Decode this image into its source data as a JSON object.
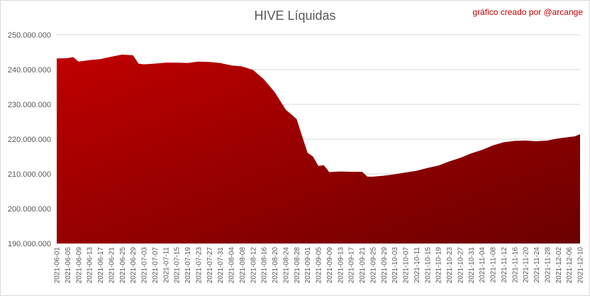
{
  "chart_data": {
    "type": "area",
    "title": "HIVE Líquidas",
    "credit": "gráfico creado por @arcange",
    "xlabel": "",
    "ylabel": "",
    "ylim": [
      190000000,
      250000000
    ],
    "yticks": [
      {
        "value": 190000000,
        "label": "190.000.000"
      },
      {
        "value": 200000000,
        "label": "200.000.000"
      },
      {
        "value": 210000000,
        "label": "210.000.000"
      },
      {
        "value": 220000000,
        "label": "220.000.000"
      },
      {
        "value": 230000000,
        "label": "230.000.000"
      },
      {
        "value": 240000000,
        "label": "240.000.000"
      },
      {
        "value": 250000000,
        "label": "250.000.000"
      }
    ],
    "xticks": [
      "2021-06-01",
      "2021-06-05",
      "2021-06-09",
      "2021-06-13",
      "2021-06-17",
      "2021-06-21",
      "2021-06-25",
      "2021-06-29",
      "2021-07-03",
      "2021-07-07",
      "2021-07-11",
      "2021-07-15",
      "2021-07-19",
      "2021-07-23",
      "2021-07-27",
      "2021-07-31",
      "2021-08-04",
      "2021-08-08",
      "2021-08-12",
      "2021-08-16",
      "2021-08-20",
      "2021-08-24",
      "2021-08-28",
      "2021-09-01",
      "2021-09-05",
      "2021-09-09",
      "2021-09-13",
      "2021-09-17",
      "2021-09-21",
      "2021-09-25",
      "2021-09-29",
      "2021-10-03",
      "2021-10-07",
      "2021-10-11",
      "2021-10-15",
      "2021-10-19",
      "2021-10-23",
      "2021-10-27",
      "2021-10-31",
      "2021-11-04",
      "2021-11-08",
      "2021-11-12",
      "2021-11-16",
      "2021-11-20",
      "2021-11-24",
      "2021-11-28",
      "2021-12-02",
      "2021-12-06",
      "2021-12-10"
    ],
    "grid": true,
    "legend": "none",
    "colors": {
      "fill_top": "#c00000",
      "fill_bottom": "#6b0000",
      "grid": "#d9d9d9",
      "credit": "#c00000"
    },
    "series": [
      {
        "x": [
          "2021-06-01",
          "2021-06-05",
          "2021-06-07",
          "2021-06-09",
          "2021-06-13",
          "2021-06-17",
          "2021-06-21",
          "2021-06-25",
          "2021-06-29",
          "2021-07-01",
          "2021-07-03",
          "2021-07-07",
          "2021-07-11",
          "2021-07-15",
          "2021-07-19",
          "2021-07-23",
          "2021-07-27",
          "2021-07-31",
          "2021-08-04",
          "2021-08-08",
          "2021-08-12",
          "2021-08-16",
          "2021-08-20",
          "2021-08-24",
          "2021-08-28",
          "2021-09-01",
          "2021-09-03",
          "2021-09-05",
          "2021-09-07",
          "2021-09-09",
          "2021-09-11",
          "2021-09-13",
          "2021-09-17",
          "2021-09-21",
          "2021-09-23",
          "2021-09-25",
          "2021-09-29",
          "2021-10-03",
          "2021-10-07",
          "2021-10-11",
          "2021-10-15",
          "2021-10-19",
          "2021-10-23",
          "2021-10-27",
          "2021-10-31",
          "2021-11-04",
          "2021-11-08",
          "2021-11-12",
          "2021-11-16",
          "2021-11-20",
          "2021-11-24",
          "2021-11-28",
          "2021-12-02",
          "2021-12-06",
          "2021-12-08",
          "2021-12-10"
        ],
        "values": [
          243200000,
          243300000,
          243600000,
          242300000,
          242700000,
          243000000,
          243700000,
          244300000,
          244100000,
          241700000,
          241500000,
          241700000,
          242000000,
          242000000,
          241900000,
          242300000,
          242200000,
          241900000,
          241200000,
          240900000,
          239900000,
          237200000,
          233500000,
          228500000,
          225800000,
          216100000,
          215000000,
          212300000,
          212500000,
          210500000,
          210600000,
          210700000,
          210600000,
          210600000,
          209200000,
          209200000,
          209500000,
          209900000,
          210400000,
          210900000,
          211700000,
          212400000,
          213600000,
          214600000,
          215900000,
          216900000,
          218200000,
          219100000,
          219500000,
          219600000,
          219400000,
          219600000,
          220200000,
          220600000,
          220800000,
          221400000
        ]
      }
    ]
  }
}
